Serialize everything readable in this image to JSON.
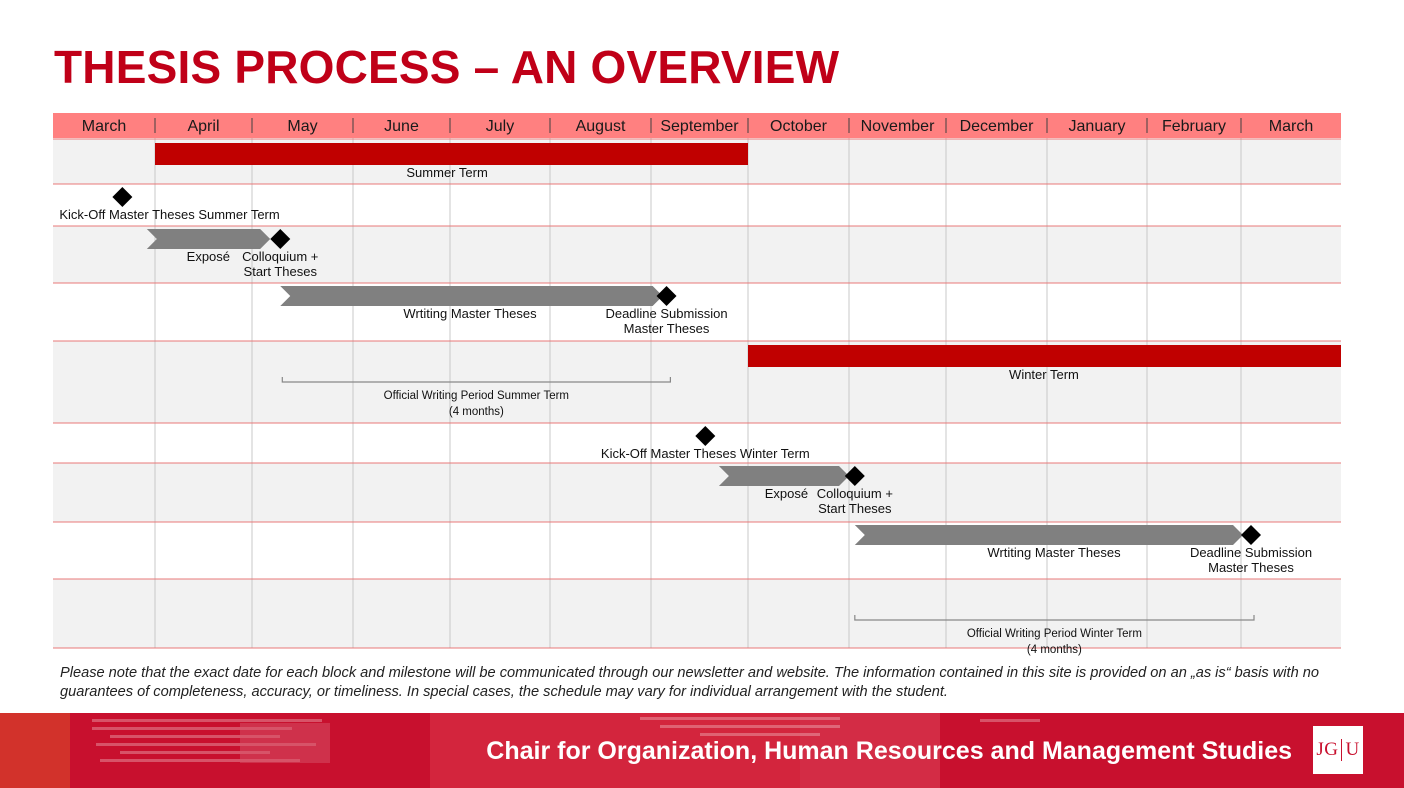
{
  "page": {
    "title": "THESIS PROCESS – AN OVERVIEW"
  },
  "months": [
    "March",
    "April",
    "May",
    "June",
    "July",
    "August",
    "September",
    "October",
    "November",
    "December",
    "January",
    "February",
    "March"
  ],
  "chart_data": {
    "type": "gantt",
    "time_axis": [
      "March",
      "April",
      "May",
      "June",
      "July",
      "August",
      "September",
      "October",
      "November",
      "December",
      "January",
      "February",
      "March"
    ],
    "rows": [
      {
        "bars": [
          {
            "name": "term-bar-summer",
            "kind": "term",
            "start": 1.0,
            "end": 7.0,
            "color": "#c00000",
            "label": "Summer Term",
            "label_at": 3.97
          }
        ]
      },
      {
        "milestones": [
          {
            "name": "milestone-kickoff-summer",
            "at": 0.68,
            "label_lines": [
              "Kick-Off Master Theses Summer Term"
            ],
            "label_at": 1.15
          }
        ]
      },
      {
        "bars": [
          {
            "name": "expose-arrow-summer",
            "kind": "arrow",
            "start": 0.92,
            "end": 2.18,
            "color": "#808080",
            "label": "Exposé",
            "label_at": 1.55
          }
        ],
        "milestones": [
          {
            "name": "milestone-colloquium-summer",
            "at": 2.28,
            "label_lines": [
              "Colloquium +",
              "Start Theses"
            ],
            "label_at": 2.28
          }
        ]
      },
      {
        "bars": [
          {
            "name": "writing-arrow-summer",
            "kind": "arrow",
            "start": 2.28,
            "end": 6.12,
            "color": "#808080",
            "label": "Wrtiting Master Theses",
            "label_at": 4.2
          }
        ],
        "milestones": [
          {
            "name": "milestone-deadline-summer",
            "at": 6.16,
            "label_lines": [
              "Deadline Submission",
              "Master Theses"
            ],
            "label_at": 6.16
          }
        ]
      },
      {
        "bars": [
          {
            "name": "term-bar-winter",
            "kind": "term",
            "start": 7.0,
            "end": 13.0,
            "color": "#c00000",
            "label": "Winter Term",
            "label_at": 9.97
          }
        ],
        "brackets": [
          {
            "name": "official-period-summer",
            "start": 2.3,
            "end": 6.2,
            "label_lines": [
              "Official Writing Period Summer Term",
              "(4 months)"
            ]
          }
        ]
      },
      {
        "milestones": [
          {
            "name": "milestone-kickoff-winter",
            "at": 6.56,
            "label_lines": [
              "Kick-Off Master Theses Winter Term"
            ],
            "label_at": 6.56
          }
        ]
      },
      {
        "bars": [
          {
            "name": "expose-arrow-winter",
            "kind": "arrow",
            "start": 6.7,
            "end": 8.0,
            "color": "#808080",
            "label": "Exposé",
            "label_at": 7.38
          }
        ],
        "milestones": [
          {
            "name": "milestone-colloquium-winter",
            "at": 8.06,
            "label_lines": [
              "Colloquium +",
              "Start Theses"
            ],
            "label_at": 8.06
          }
        ]
      },
      {
        "bars": [
          {
            "name": "writing-arrow-winter",
            "kind": "arrow",
            "start": 8.06,
            "end": 12.02,
            "color": "#808080",
            "label": "Wrtiting Master Theses",
            "label_at": 10.07
          }
        ],
        "milestones": [
          {
            "name": "milestone-deadline-winter",
            "at": 12.1,
            "label_lines": [
              "Deadline Submission",
              "Master Theses"
            ],
            "label_at": 12.1
          }
        ]
      },
      {
        "brackets": [
          {
            "name": "official-period-winter",
            "start": 8.06,
            "end": 12.13,
            "label_lines": [
              "Official Writing Period Winter Term",
              "(4 months)"
            ]
          }
        ]
      }
    ]
  },
  "note": "Please note that the exact date for each block and milestone will be communicated through our newsletter and website. The information contained in this site is provided on an „as is“ basis with no guarantees of completeness, accuracy, or timeliness. In special cases, the schedule may vary for individual arrangement with the student.",
  "footer": {
    "chair": "Chair for Organization, Human Resources and Management Studies",
    "logo_left": "JG",
    "logo_right": "U"
  },
  "colors": {
    "accent": "#c00018",
    "header_row": "#ff8080",
    "term_bar": "#c00000",
    "arrow": "#808080",
    "footer": "#c8102e"
  }
}
